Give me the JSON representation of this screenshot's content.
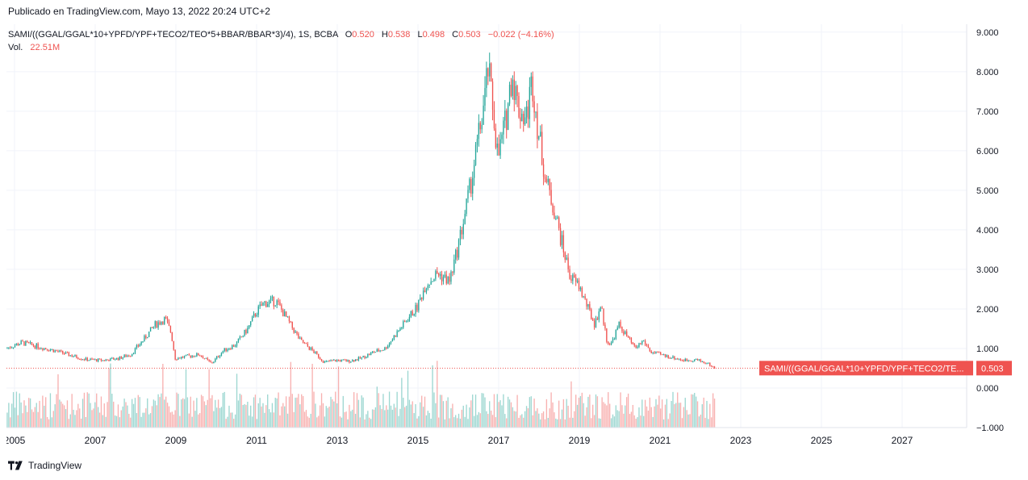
{
  "published": "Publicado en TradingView.com, Mayo 13, 2022 20:24 UTC+2",
  "legend": {
    "symbol": "SAMI/((GGAL/GGAL*10+YPFD/YPF+TECO2/TEO*5+BBAR/BBAR*3)/4), 1S, BCBA",
    "open_label": "O",
    "open": "0.520",
    "high_label": "H",
    "high": "0.538",
    "low_label": "L",
    "low": "0.498",
    "close_label": "C",
    "close": "0.503",
    "change": "−0.022 (−4.16%)",
    "vol_label": "Vol.",
    "vol": "22.51M"
  },
  "price_tag": {
    "symbol": "SAMI/((GGAL/GGAL*10+YPFD/YPF+TECO2/TE...",
    "value": "0.503"
  },
  "footer": {
    "brand": "TradingView"
  },
  "colors": {
    "up": "#26a69a",
    "down": "#ef5350",
    "grid": "#f0f3fa",
    "axis": "#e0e3eb"
  },
  "chart_data": {
    "type": "line",
    "title": "",
    "xlabel": "",
    "ylabel": "",
    "y_ticks": [
      "9.000",
      "8.000",
      "7.000",
      "6.000",
      "5.000",
      "4.000",
      "3.000",
      "2.000",
      "1.000",
      "0.000",
      "−1.000"
    ],
    "x_ticks": [
      "2005",
      "2007",
      "2009",
      "2011",
      "2013",
      "2015",
      "2017",
      "2019",
      "2021",
      "2023",
      "2025",
      "2027"
    ],
    "ylim": [
      -1,
      9.2
    ],
    "xlim": [
      2004.8,
      2028.6
    ],
    "grid": true,
    "series": [
      {
        "x": [
          2004.8,
          2005.2,
          2005.6,
          2006.0,
          2006.5,
          2006.8,
          2007.2,
          2007.6,
          2007.9,
          2008.2,
          2008.5,
          2008.75,
          2008.9,
          2009.0,
          2009.3,
          2009.6,
          2009.9,
          2010.2,
          2010.5,
          2010.8,
          2011.0,
          2011.2,
          2011.5,
          2011.8,
          2012.1,
          2012.4,
          2012.7,
          2013.0,
          2013.3,
          2013.6,
          2013.9,
          2014.2,
          2014.5,
          2014.8,
          2015.0,
          2015.2,
          2015.5,
          2015.8,
          2015.95,
          2016.1,
          2016.3,
          2016.5,
          2016.7,
          2016.75,
          2016.9,
          2017.0,
          2017.2,
          2017.35,
          2017.5,
          2017.7,
          2017.85,
          2018.0,
          2018.2,
          2018.4,
          2018.6,
          2018.8,
          2019.0,
          2019.2,
          2019.4,
          2019.55,
          2019.7,
          2019.8,
          2020.0,
          2020.2,
          2020.4,
          2020.6,
          2020.8,
          2021.0,
          2021.3,
          2021.6,
          2021.9,
          2022.2,
          2022.37
        ],
        "y": [
          1.0,
          1.15,
          1.05,
          0.95,
          0.8,
          0.72,
          0.7,
          0.75,
          0.85,
          1.2,
          1.6,
          1.75,
          1.4,
          0.75,
          0.8,
          0.85,
          0.62,
          0.95,
          1.1,
          1.5,
          1.9,
          2.15,
          2.2,
          1.7,
          1.2,
          0.95,
          0.65,
          0.7,
          0.68,
          0.75,
          0.9,
          1.0,
          1.4,
          1.8,
          2.05,
          2.6,
          2.9,
          2.7,
          3.3,
          4.0,
          5.0,
          6.2,
          7.5,
          8.1,
          6.9,
          5.8,
          6.8,
          8.0,
          7.1,
          6.8,
          7.8,
          6.5,
          5.2,
          4.5,
          3.6,
          2.8,
          2.6,
          2.1,
          1.6,
          2.1,
          1.2,
          1.1,
          1.6,
          1.3,
          1.0,
          1.2,
          0.9,
          0.85,
          0.78,
          0.7,
          0.72,
          0.62,
          0.503
        ]
      }
    ],
    "volume_bars": 460
  }
}
